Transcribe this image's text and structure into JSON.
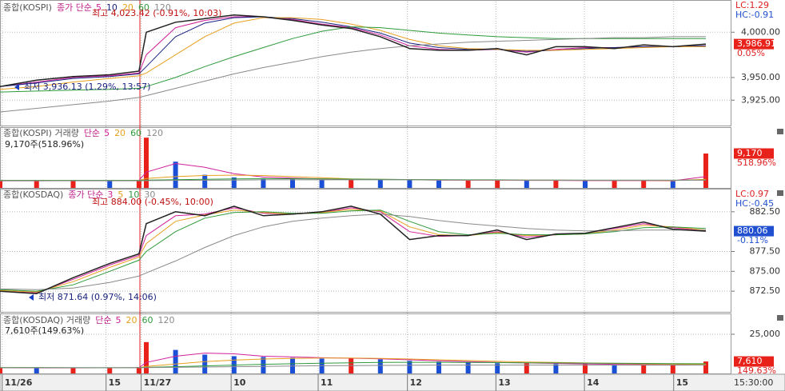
{
  "chart_data": [
    {
      "type": "line",
      "title": "종합(KOSPI)",
      "legend_label": "종가 단순",
      "ylim": [
        3897,
        4032
      ],
      "yticks": [
        {
          "value": 3925,
          "label": "3,925.00"
        },
        {
          "value": 3950,
          "label": "3,950.00"
        },
        {
          "value": 4000,
          "label": "4,000.00"
        }
      ],
      "series": [
        {
          "color": "#222222",
          "values": [
            3940,
            3947,
            3951,
            3953,
            3957,
            4000,
            4011,
            4015,
            4019,
            4017,
            4013,
            4008,
            4004,
            3995,
            3982,
            3980,
            3980,
            3982,
            3975,
            3984,
            3984,
            3982,
            3986,
            3984,
            3986.91
          ]
        },
        {
          "name": "5",
          "color": "#d0209a",
          "values": [
            3940,
            3945,
            3950,
            3952,
            3955,
            3975,
            4005,
            4013,
            4017,
            4017,
            4014,
            4009,
            4005,
            3997,
            3985,
            3981,
            3980,
            3981,
            3978,
            3981,
            3983,
            3983,
            3984,
            3984,
            3985
          ]
        },
        {
          "name": "10",
          "color": "#1a237e",
          "values": [
            3940,
            3944,
            3949,
            3951,
            3954,
            3962,
            3995,
            4010,
            4016,
            4017,
            4015,
            4011,
            4006,
            3999,
            3988,
            3983,
            3981,
            3981,
            3979,
            3980,
            3982,
            3983,
            3984,
            3984,
            3985
          ]
        },
        {
          "name": "20",
          "color": "#e8a020",
          "values": [
            3937,
            3940,
            3945,
            3949,
            3952,
            3955,
            3975,
            3995,
            4010,
            4016,
            4016,
            4014,
            4009,
            4002,
            3992,
            3985,
            3982,
            3981,
            3980,
            3980,
            3981,
            3982,
            3983,
            3984,
            3984
          ]
        },
        {
          "name": "60",
          "color": "#2e9a3a",
          "values": [
            3934,
            3935,
            3936,
            3937,
            3938,
            3940,
            3950,
            3962,
            3973,
            3983,
            3993,
            4001,
            4006,
            4005,
            4002,
            3999,
            3997,
            3995,
            3994,
            3993,
            3993,
            3993,
            3993,
            3993,
            3993
          ]
        },
        {
          "name": "120",
          "color": "#8a8a8a",
          "values": [
            3912,
            3916,
            3920,
            3924,
            3928,
            3930,
            3938,
            3946,
            3954,
            3961,
            3967,
            3973,
            3978,
            3982,
            3985,
            3987,
            3989,
            3990,
            3991,
            3992,
            3993,
            3994,
            3994,
            3995,
            3995
          ]
        }
      ],
      "high_label": "최고 4,023.42 (-0.91%, 10:03)",
      "low_label": "최저 3,936.13 (1.29%, 13:57)",
      "lc_label": "LC:1.29",
      "hc_label": "HC:-0.91",
      "last": {
        "value": 3986.91,
        "label": "3,986.91",
        "color": "#e8221a"
      },
      "change_label": "0.05%"
    },
    {
      "type": "bar",
      "title": "종합(KOSPI) 거래량",
      "legend_label": "단순",
      "ylim": [
        0,
        16000
      ],
      "up_color": "#e8221a",
      "down_color": "#1a4fd6",
      "series": [
        {
          "values": [
            1800,
            1900,
            2000,
            1900,
            2100,
            13400,
            7000,
            3500,
            2800,
            2600,
            2400,
            2200,
            2300,
            2200,
            2100,
            2000,
            2000,
            2100,
            1900,
            2000,
            1900,
            1900,
            2000,
            1800,
            9170
          ]
        },
        {
          "name": "5",
          "color": "#d0209a",
          "values": [
            1900,
            1900,
            1950,
            1950,
            2000,
            4200,
            6500,
            5500,
            3800,
            2900,
            2600,
            2400,
            2300,
            2250,
            2200,
            2100,
            2050,
            2050,
            2000,
            2000,
            1950,
            1950,
            1950,
            1900,
            3000
          ]
        },
        {
          "name": "20",
          "color": "#e8a020",
          "values": [
            2000,
            2000,
            1950,
            1950,
            2000,
            2500,
            3000,
            3300,
            3400,
            3300,
            3000,
            2700,
            2400,
            2300,
            2200,
            2150,
            2100,
            2100,
            2050,
            2050,
            2000,
            2000,
            2000,
            1950,
            2300
          ]
        },
        {
          "name": "60",
          "color": "#2e9a3a",
          "values": [
            2000,
            2000,
            2000,
            2000,
            2000,
            2100,
            2200,
            2300,
            2400,
            2450,
            2450,
            2400,
            2350,
            2300,
            2250,
            2200,
            2150,
            2150,
            2100,
            2100,
            2050,
            2050,
            2050,
            2050,
            2100
          ]
        },
        {
          "name": "120",
          "color": "#8a8a8a",
          "values": [
            1900,
            1900,
            1900,
            1900,
            1900,
            1950,
            2000,
            2050,
            2100,
            2150,
            2150,
            2150,
            2150,
            2150,
            2150,
            2100,
            2100,
            2100,
            2100,
            2100,
            2050,
            2050,
            2050,
            2050,
            2050
          ]
        }
      ],
      "info_label": "9,170주(518.96%)",
      "last": {
        "value": 9170,
        "label": "9,170",
        "color": "#e8221a"
      },
      "change_label": "518.96%"
    },
    {
      "type": "line",
      "title": "종합(KOSDAQ)",
      "legend_label": "종가 단순",
      "ylim": [
        869.9,
        885
      ],
      "yticks": [
        {
          "value": 872.5,
          "label": "872.50"
        },
        {
          "value": 875,
          "label": "875.00"
        },
        {
          "value": 877.5,
          "label": "877.50"
        },
        {
          "value": 882.5,
          "label": "882.50"
        }
      ],
      "series": [
        {
          "color": "#222222",
          "values": [
            872.5,
            872.2,
            874.2,
            876,
            877.2,
            881,
            882.5,
            882,
            883.2,
            882,
            882.2,
            882.5,
            883.2,
            882.2,
            879,
            879.5,
            879.5,
            880.2,
            879,
            879.7,
            879.8,
            880.5,
            881.2,
            880.3,
            880.06
          ]
        },
        {
          "name": "3",
          "color": "#d0209a",
          "values": [
            872.5,
            872.3,
            874,
            875.8,
            877,
            879.5,
            882,
            882.2,
            883,
            882.3,
            882.2,
            882.4,
            883,
            882.5,
            880,
            879.4,
            879.5,
            880,
            879.3,
            879.6,
            879.8,
            880.4,
            881,
            880.5,
            880.1
          ]
        },
        {
          "name": "5",
          "color": "#e8a020",
          "values": [
            872.6,
            872.4,
            873.7,
            875.5,
            876.8,
            878.5,
            881.3,
            882.1,
            882.7,
            882.4,
            882.2,
            882.4,
            882.8,
            882.6,
            880.6,
            879.6,
            879.5,
            879.9,
            879.5,
            879.6,
            879.7,
            880.2,
            880.8,
            880.6,
            880.2
          ]
        },
        {
          "name": "10",
          "color": "#2e9a3a",
          "values": [
            872.7,
            872.5,
            873.3,
            875,
            876.4,
            877.5,
            880,
            881.7,
            882.4,
            882.5,
            882.3,
            882.3,
            882.6,
            882.7,
            881.3,
            880,
            879.6,
            879.8,
            879.6,
            879.6,
            879.7,
            880,
            880.5,
            880.6,
            880.4
          ]
        },
        {
          "name": "30",
          "color": "#8a8a8a",
          "values": [
            872.8,
            872.7,
            872.9,
            873.6,
            874.4,
            874.8,
            876.3,
            878,
            879.5,
            880.6,
            881.3,
            881.7,
            882,
            882.2,
            881.9,
            881.4,
            881,
            880.7,
            880.4,
            880.2,
            880.1,
            880.1,
            880.2,
            880.2,
            880.2
          ]
        }
      ],
      "high_label": "최고 884.00 (-0.45%, 10:00)",
      "low_label": "최저 871.64 (0.97%, 14:06)",
      "lc_label": "LC:0.97",
      "hc_label": "HC:-0.45",
      "last": {
        "value": 880.06,
        "label": "880.06",
        "color": "#2050d0"
      },
      "change_label": "-0.11%"
    },
    {
      "type": "bar",
      "title": "종합(KOSDAQ) 거래량",
      "legend_label": "단순",
      "ylim": [
        0,
        37800
      ],
      "yticks": [
        {
          "value": 25000,
          "label": "25,000"
        }
      ],
      "up_color": "#e8221a",
      "down_color": "#1a4fd6",
      "series": [
        {
          "values": [
            3600,
            3500,
            3500,
            3800,
            4000,
            20000,
            15000,
            12000,
            11000,
            10500,
            10000,
            9500,
            9500,
            9000,
            8000,
            7500,
            7000,
            6500,
            6500,
            6000,
            6000,
            5500,
            5500,
            5500,
            7610
          ]
        },
        {
          "name": "5",
          "color": "#d0209a",
          "values": [
            3600,
            3550,
            3550,
            3600,
            3700,
            7000,
            11000,
            13000,
            12500,
            11000,
            10500,
            10000,
            9700,
            9300,
            8700,
            8000,
            7500,
            7000,
            6700,
            6400,
            6100,
            5800,
            5600,
            5500,
            5900
          ]
        },
        {
          "name": "20",
          "color": "#e8a020",
          "values": [
            3700,
            3650,
            3600,
            3600,
            3650,
            4500,
            6000,
            7500,
            8500,
            9200,
            9600,
            9800,
            9800,
            9600,
            9200,
            8700,
            8200,
            7700,
            7300,
            7000,
            6700,
            6400,
            6100,
            5900,
            5800
          ]
        },
        {
          "name": "60",
          "color": "#2e9a3a",
          "values": [
            3800,
            3800,
            3750,
            3700,
            3700,
            3900,
            4300,
            4800,
            5300,
            5800,
            6200,
            6500,
            6800,
            7000,
            7100,
            7100,
            7000,
            6900,
            6800,
            6700,
            6600,
            6500,
            6400,
            6300,
            6200
          ]
        },
        {
          "name": "120",
          "color": "#8a8a8a",
          "values": [
            3600,
            3600,
            3600,
            3600,
            3600,
            3700,
            3900,
            4100,
            4300,
            4500,
            4700,
            4900,
            5000,
            5100,
            5200,
            5300,
            5300,
            5300,
            5300,
            5300,
            5300,
            5300,
            5300,
            5300,
            5300
          ]
        }
      ],
      "info_label": "7,610주(149.63%)",
      "last": {
        "value": 7610,
        "label": "7,610",
        "color": "#e8221a"
      },
      "change_label": "149.63%",
      "x": [
        0,
        5,
        10,
        15,
        19,
        20,
        24,
        28,
        32,
        36,
        40,
        44,
        48,
        52,
        56,
        60,
        64,
        68,
        72,
        76,
        80,
        84,
        88,
        92,
        96.5
      ],
      "xlim": [
        0,
        100
      ],
      "xticks": [
        {
          "value": 0.3,
          "label": "11/26"
        },
        {
          "value": 14.5,
          "label": "15"
        },
        {
          "value": 19.3,
          "label": "11/27"
        },
        {
          "value": 31.6,
          "label": "10"
        },
        {
          "value": 43.5,
          "label": "11"
        },
        {
          "value": 55.7,
          "label": "12"
        },
        {
          "value": 67.8,
          "label": "13"
        },
        {
          "value": 79.9,
          "label": "14"
        },
        {
          "value": 92.1,
          "label": "15"
        }
      ]
    }
  ],
  "time_label": "15:30:00"
}
